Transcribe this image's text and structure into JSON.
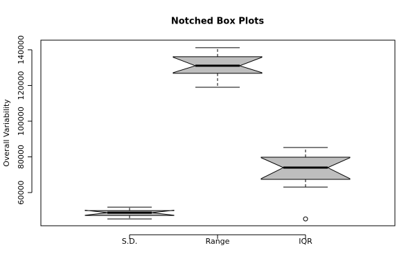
{
  "chart_data": {
    "type": "boxplot",
    "title": "Notched Box Plots",
    "y_label": "Overall Variability",
    "categories": [
      "S.D.",
      "Range",
      "IQR"
    ],
    "boxes": [
      {
        "whisker_low": 45240,
        "q1": 47180,
        "notch_low": 47300,
        "median": 48740,
        "notch_high": 50100,
        "q3": 49900,
        "whisker_high": 51845,
        "outliers": []
      },
      {
        "whisker_low": 119030,
        "q1": 126800,
        "notch_low": 127200,
        "median": 131070,
        "notch_high": 135800,
        "q3": 136120,
        "whisker_high": 141165,
        "outliers": []
      },
      {
        "whisker_low": 63100,
        "q1": 67380,
        "notch_low": 67800,
        "median": 73980,
        "notch_high": 79500,
        "q3": 79800,
        "whisker_high": 85240,
        "outliers": [
          45240
        ]
      }
    ],
    "color": "#bebebe",
    "ylim": [
      41400,
      145400
    ],
    "yticks": [
      60000,
      80000,
      100000,
      120000,
      140000
    ]
  }
}
